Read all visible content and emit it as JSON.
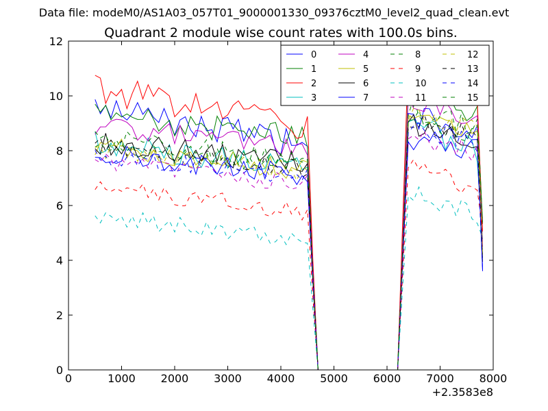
{
  "suptitle": "Data file: modeM0/AS1A03_057T01_9000001330_09376cztM0_level2_quad_clean.evt",
  "chart_data": {
    "type": "line",
    "title": "Quadrant 2 module wise count rates with 100.0s bins.",
    "xlabel": "",
    "ylabel": "",
    "xlim": [
      0,
      8000
    ],
    "ylim": [
      0,
      12
    ],
    "x_offset_label": "+2.3583e8",
    "xticks": [
      0,
      1000,
      2000,
      3000,
      4000,
      5000,
      6000,
      7000,
      8000
    ],
    "yticks": [
      0,
      2,
      4,
      6,
      8,
      10,
      12
    ],
    "grid": false,
    "legend_position": "top-right",
    "series": [
      {
        "name": "0",
        "color": "#0000ff",
        "dash": "solid",
        "base": 8.5,
        "jitter": 0.5,
        "post_base": 9.2,
        "post_end": 8.5
      },
      {
        "name": "1",
        "color": "#008000",
        "dash": "solid",
        "base": 8.8,
        "jitter": 0.5,
        "post_base": 10.2,
        "post_end": 9.5
      },
      {
        "name": "2",
        "color": "#ff0000",
        "dash": "solid",
        "base": 9.2,
        "jitter": 0.55,
        "post_base": 11.3,
        "post_end": 10.0
      },
      {
        "name": "3",
        "color": "#00bfbf",
        "dash": "solid",
        "base": 7.7,
        "jitter": 0.45,
        "post_base": 9.0,
        "post_end": 8.0
      },
      {
        "name": "4",
        "color": "#bf00bf",
        "dash": "solid",
        "base": 8.4,
        "jitter": 0.4,
        "post_base": 10.0,
        "post_end": 9.0
      },
      {
        "name": "5",
        "color": "#bfbf00",
        "dash": "solid",
        "base": 7.6,
        "jitter": 0.4,
        "post_base": 9.3,
        "post_end": 8.7
      },
      {
        "name": "6",
        "color": "#000000",
        "dash": "solid",
        "base": 7.8,
        "jitter": 0.45,
        "post_base": 9.1,
        "post_end": 8.4
      },
      {
        "name": "7",
        "color": "#0000ff",
        "dash": "solid",
        "base": 7.4,
        "jitter": 0.4,
        "post_base": 8.4,
        "post_end": 8.0
      },
      {
        "name": "8",
        "color": "#008000",
        "dash": "dashed",
        "base": 7.7,
        "jitter": 0.35,
        "post_base": 9.2,
        "post_end": 8.6
      },
      {
        "name": "9",
        "color": "#ff0000",
        "dash": "dashed",
        "base": 6.1,
        "jitter": 0.35,
        "post_base": 7.5,
        "post_end": 6.6
      },
      {
        "name": "10",
        "color": "#00bfbf",
        "dash": "dashed",
        "base": 5.1,
        "jitter": 0.35,
        "post_base": 6.5,
        "post_end": 5.6
      },
      {
        "name": "11",
        "color": "#bf00bf",
        "dash": "dashed",
        "base": 7.1,
        "jitter": 0.35,
        "post_base": 8.6,
        "post_end": 7.9
      },
      {
        "name": "12",
        "color": "#bfbf00",
        "dash": "dashed",
        "base": 7.5,
        "jitter": 0.35,
        "post_base": 9.3,
        "post_end": 8.8
      },
      {
        "name": "13",
        "color": "#000000",
        "dash": "dashed",
        "base": 7.6,
        "jitter": 0.35,
        "post_base": 9.1,
        "post_end": 8.6
      },
      {
        "name": "14",
        "color": "#0000ff",
        "dash": "dashed",
        "base": 7.3,
        "jitter": 0.35,
        "post_base": 8.9,
        "post_end": 8.3
      },
      {
        "name": "15",
        "color": "#008000",
        "dash": "dashed",
        "base": 7.9,
        "jitter": 0.4,
        "post_base": 9.6,
        "post_end": 8.9
      }
    ],
    "segments": {
      "pre_start": 500,
      "pre_end": 4500,
      "drop_end": 4700,
      "zero_end": 6200,
      "rise_at": 6400,
      "post_end": 7750,
      "last": 7800,
      "step": 100
    }
  }
}
